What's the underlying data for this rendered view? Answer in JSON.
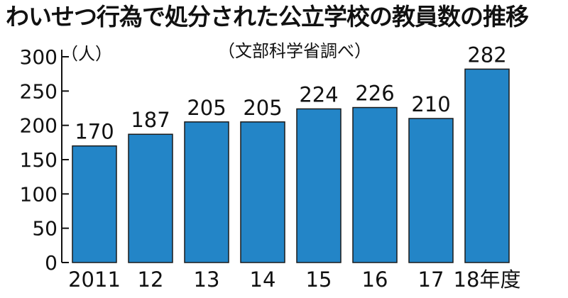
{
  "chart_data": {
    "type": "bar",
    "title": "わいせつ行為で処分された公立学校の教員数の推移",
    "subtitle": "（文部科学省調べ）",
    "ylabel": "（人）",
    "xlabel": "",
    "categories": [
      "2011",
      "12",
      "13",
      "14",
      "15",
      "16",
      "17",
      "18年度"
    ],
    "values": [
      170,
      187,
      205,
      205,
      224,
      226,
      210,
      282
    ],
    "data_labels": [
      "170",
      "187",
      "205",
      "205",
      "224",
      "226",
      "210",
      "282"
    ],
    "ylim": [
      0,
      300
    ],
    "yticks": [
      0,
      50,
      100,
      150,
      200,
      250,
      300
    ],
    "ytick_labels": [
      "0",
      "50",
      "100",
      "150",
      "200",
      "250",
      "300"
    ],
    "grid": false,
    "legend": "none",
    "bar_color": "#2385c7",
    "bar_edge_color": "#1a1a1a"
  }
}
